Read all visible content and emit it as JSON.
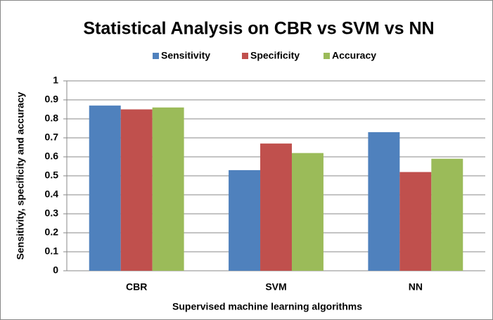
{
  "chart_data": {
    "type": "bar",
    "title": "Statistical Analysis on CBR vs SVM vs NN",
    "x_label": "Supervised machine learning algorithms",
    "y_label": "Sensitivity,  specificity  and accuracy",
    "categories": [
      "CBR",
      "SVM",
      "NN"
    ],
    "series": [
      {
        "name": "Sensitivity",
        "color": "#4f81bd",
        "values": [
          0.87,
          0.53,
          0.73
        ]
      },
      {
        "name": "Specificity",
        "color": "#c0504d",
        "values": [
          0.85,
          0.67,
          0.52
        ]
      },
      {
        "name": "Accuracy",
        "color": "#9bbb59",
        "values": [
          0.86,
          0.62,
          0.59
        ]
      }
    ],
    "ylim": [
      0,
      1
    ],
    "yticks": [
      0,
      0.1,
      0.2,
      0.3,
      0.4,
      0.5,
      0.6,
      0.7,
      0.8,
      0.9,
      1
    ],
    "grid": true,
    "legend": "top"
  }
}
